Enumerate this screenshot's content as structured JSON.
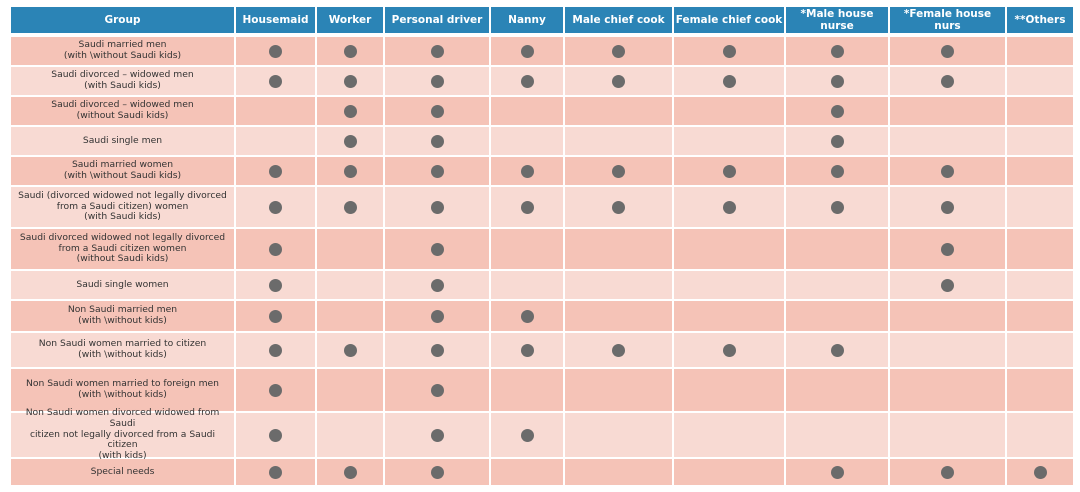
{
  "colors": {
    "header": "#2b84b6",
    "row_dark": "#f5c3b7",
    "row_light": "#f8dad3",
    "dot": "#6b6b6b"
  },
  "table": {
    "headers": [
      "Group",
      "Housemaid",
      "Worker",
      "Personal driver",
      "Nanny",
      "Male chief cook",
      "Female chief cook",
      "*Male house nurse",
      "*Female house nurs",
      "**Others"
    ],
    "rows": [
      {
        "group": "Saudi married  men\n(with \\without Saudi kids)",
        "marks": [
          1,
          1,
          1,
          1,
          1,
          1,
          1,
          1,
          0
        ]
      },
      {
        "group": "Saudi divorced – widowed men\n(with Saudi kids)",
        "marks": [
          1,
          1,
          1,
          1,
          1,
          1,
          1,
          1,
          0
        ]
      },
      {
        "group": "Saudi divorced – widowed men\n(without Saudi kids)",
        "marks": [
          0,
          1,
          1,
          0,
          0,
          0,
          1,
          0,
          0
        ]
      },
      {
        "group": "Saudi single men",
        "marks": [
          0,
          1,
          1,
          0,
          0,
          0,
          1,
          0,
          0
        ]
      },
      {
        "group": "Saudi married  women\n(with \\without Saudi kids)",
        "marks": [
          1,
          1,
          1,
          1,
          1,
          1,
          1,
          1,
          0
        ]
      },
      {
        "group": "Saudi (divorced  widowed not legally divorced\nfrom a Saudi citizen) women\n(with Saudi kids)",
        "marks": [
          1,
          1,
          1,
          1,
          1,
          1,
          1,
          1,
          0
        ]
      },
      {
        "group": "Saudi divorced  widowed  not legally divorced\nfrom a Saudi citizen women\n(without Saudi kids)",
        "marks": [
          1,
          0,
          1,
          0,
          0,
          0,
          0,
          1,
          0
        ]
      },
      {
        "group": "Saudi single women",
        "marks": [
          1,
          0,
          1,
          0,
          0,
          0,
          0,
          1,
          0
        ]
      },
      {
        "group": "Non Saudi married  men\n(with \\without kids)",
        "marks": [
          1,
          0,
          1,
          1,
          0,
          0,
          0,
          0,
          0
        ]
      },
      {
        "group": "Non Saudi women married to citizen\n(with \\without kids)",
        "marks": [
          1,
          1,
          1,
          1,
          1,
          1,
          1,
          0,
          0
        ]
      },
      {
        "group": "Non Saudi women married to foreign men\n(with \\without kids)",
        "marks": [
          1,
          0,
          1,
          0,
          0,
          0,
          0,
          0,
          0
        ]
      },
      {
        "group": "Non Saudi women divorced widowed from Saudi\ncitizen not legally divorced from a Saudi citizen\n(with kids)",
        "marks": [
          1,
          0,
          1,
          1,
          0,
          0,
          0,
          0,
          0
        ]
      },
      {
        "group": "Special needs",
        "marks": [
          1,
          1,
          1,
          0,
          0,
          0,
          1,
          1,
          1
        ]
      }
    ]
  }
}
